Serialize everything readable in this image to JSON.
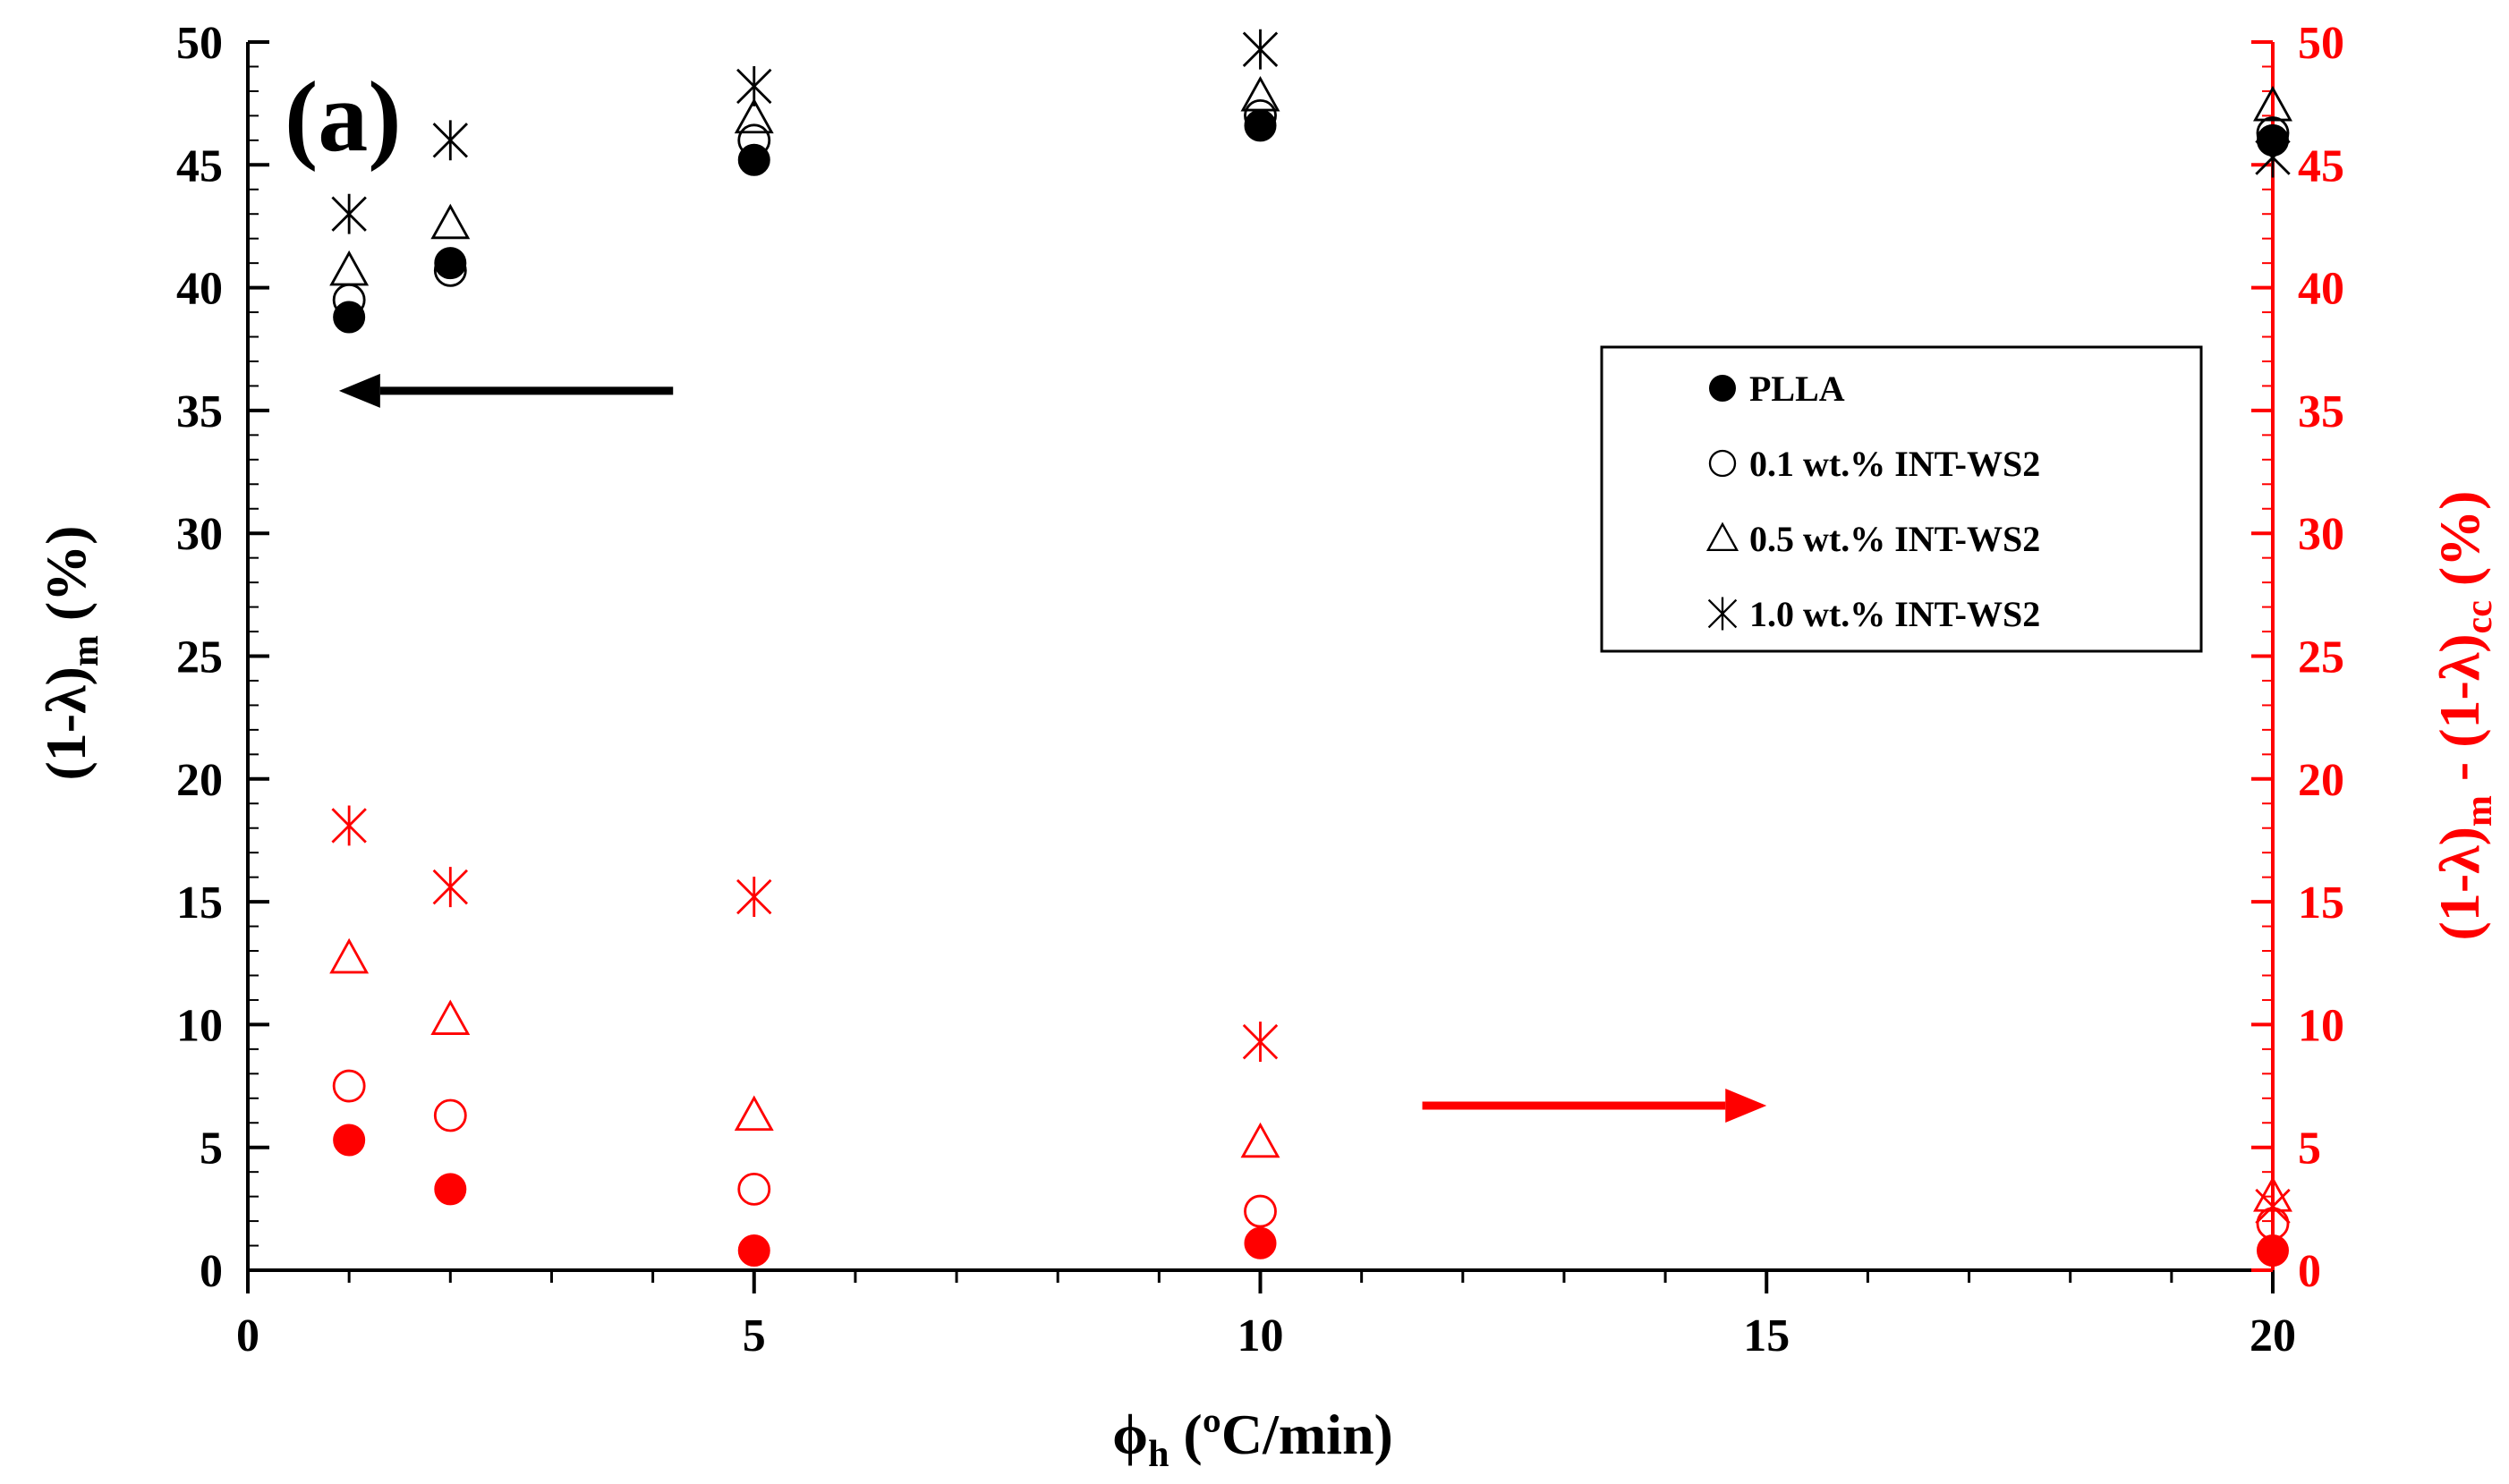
{
  "chart_data": {
    "type": "scatter",
    "panel_label": "(a)",
    "xlabel": {
      "main": "ϕ",
      "sub": "h",
      "rest": " (ºC/min)"
    },
    "ylabel_left": {
      "main": "(1-λ)",
      "sub": "m",
      "rest": " (%)"
    },
    "ylabel_right": {
      "p1": "(1-λ)",
      "s1": "m",
      "p2": " - (1-λ)",
      "s2": "cc",
      "p3": " (%)"
    },
    "xlim": [
      0,
      20
    ],
    "ylim": [
      0,
      50
    ],
    "x_ticks": [
      0,
      5,
      10,
      15,
      20
    ],
    "y_ticks": [
      0,
      5,
      10,
      15,
      20,
      25,
      30,
      35,
      40,
      45,
      50
    ],
    "grid": false,
    "legend_position": "top-right",
    "colors": {
      "left_axis": "#000000",
      "right_axis": "#ff0000"
    },
    "legend": [
      {
        "label": "PLLA",
        "marker": "filled-circle"
      },
      {
        "label": "0.1 wt.% INT-WS2",
        "marker": "open-circle"
      },
      {
        "label": "0.5 wt.% INT-WS2",
        "marker": "open-triangle"
      },
      {
        "label": "1.0 wt.% INT-WS2",
        "marker": "asterisk"
      }
    ],
    "x": [
      1,
      2,
      5,
      10,
      20
    ],
    "series_left": [
      {
        "name": "PLLA",
        "marker": "filled-circle",
        "values": [
          38.8,
          41.0,
          45.2,
          46.6,
          46.0
        ]
      },
      {
        "name": "0.1 wt.% INT-WS2",
        "marker": "open-circle",
        "values": [
          39.5,
          40.7,
          46.0,
          47.0,
          46.3
        ]
      },
      {
        "name": "0.5 wt.% INT-WS2",
        "marker": "open-triangle",
        "values": [
          40.7,
          42.6,
          46.9,
          47.8,
          47.4
        ]
      },
      {
        "name": "1.0 wt.% INT-WS2",
        "marker": "asterisk",
        "values": [
          43.0,
          46.0,
          48.2,
          49.7,
          45.3
        ]
      }
    ],
    "series_right": [
      {
        "name": "PLLA",
        "marker": "filled-circle",
        "values": [
          5.3,
          3.3,
          0.8,
          1.1,
          0.8
        ]
      },
      {
        "name": "0.1 wt.% INT-WS2",
        "marker": "open-circle",
        "values": [
          7.5,
          6.3,
          3.3,
          2.4,
          1.9
        ]
      },
      {
        "name": "0.5 wt.% INT-WS2",
        "marker": "open-triangle",
        "values": [
          12.7,
          10.2,
          6.3,
          5.2,
          3.0
        ]
      },
      {
        "name": "1.0 wt.% INT-WS2",
        "marker": "asterisk",
        "values": [
          18.1,
          15.6,
          15.2,
          9.3,
          2.6
        ]
      }
    ],
    "annotations": [
      {
        "arrow": "left-pointing",
        "axis": "left",
        "color": "#000000",
        "from": [
          4.2,
          35.8
        ],
        "to": [
          0.9,
          35.8
        ]
      },
      {
        "arrow": "right-pointing",
        "axis": "right",
        "color": "#ff0000",
        "from": [
          11.6,
          6.7
        ],
        "to": [
          15.0,
          6.7
        ]
      }
    ]
  }
}
